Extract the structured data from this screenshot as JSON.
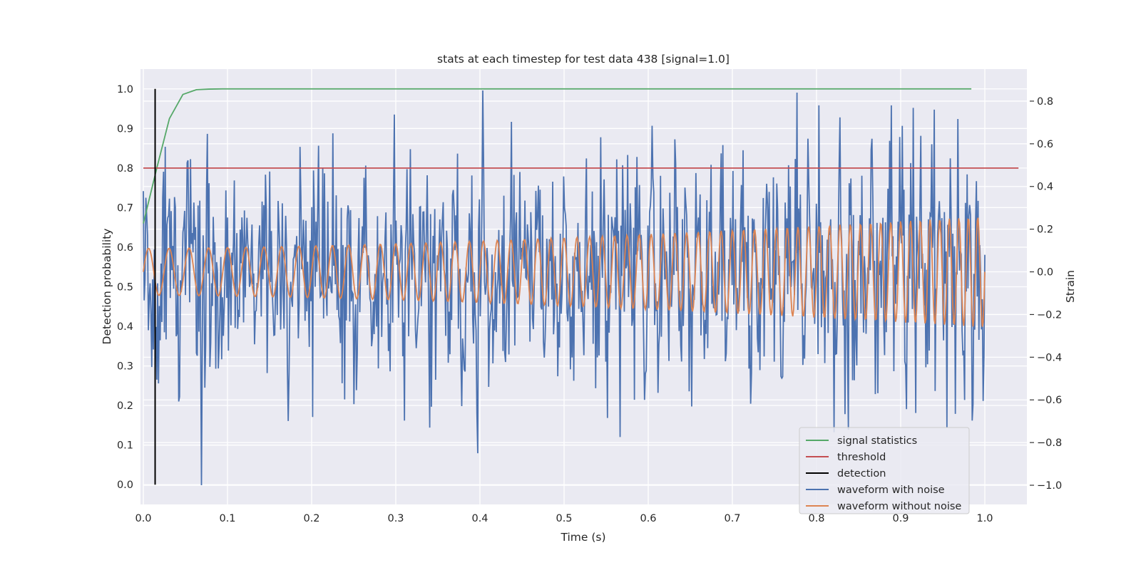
{
  "chart_data": {
    "type": "line",
    "title": "stats at each timestep for test data 438 [signal=1.0]",
    "xlabel": "Time (s)",
    "ylabel": "Detection probability",
    "ylabel_right": "Strain",
    "xlim": [
      0.0,
      1.05
    ],
    "ylim": [
      -0.05,
      1.05
    ],
    "ylim_right": [
      -1.09,
      0.95
    ],
    "xticks": [
      "0.0",
      "0.1",
      "0.2",
      "0.3",
      "0.4",
      "0.5",
      "0.6",
      "0.7",
      "0.8",
      "0.9",
      "1.0"
    ],
    "yticks": [
      "0.0",
      "0.1",
      "0.2",
      "0.3",
      "0.4",
      "0.5",
      "0.6",
      "0.7",
      "0.8",
      "0.9",
      "1.0"
    ],
    "yticks_right": [
      "−1.0",
      "−0.8",
      "−0.6",
      "−0.4",
      "−0.2",
      "0.0",
      "0.2",
      "0.4",
      "0.6",
      "0.8"
    ],
    "grid": true,
    "legend_position": "lower-right",
    "series": [
      {
        "name": "signal statistics",
        "color": "#55a868",
        "axis": "left",
        "x": [
          0.0,
          0.016,
          0.031,
          0.047,
          0.063,
          0.078,
          0.094,
          0.2,
          0.4,
          0.6,
          0.8,
          0.984
        ],
        "y": [
          0.66,
          0.8,
          0.925,
          0.986,
          0.998,
          0.9995,
          1.0,
          1.0,
          1.0,
          1.0,
          1.0,
          1.0
        ]
      },
      {
        "name": "threshold",
        "color": "#c44e52",
        "axis": "left",
        "x": [
          0.0,
          1.04
        ],
        "y": [
          0.8,
          0.8
        ]
      },
      {
        "name": "detection",
        "color": "#000000",
        "axis": "left",
        "x": [
          0.014,
          0.014
        ],
        "y": [
          0.0,
          1.0
        ]
      },
      {
        "name": "waveform with noise",
        "color": "#4c72b0",
        "axis": "right",
        "description": "noisy strain, 1000 samples from 0.0 to 1.0 s, std ~0.25, min -1.0 near t=0.069, max 0.85 near t=0.403"
      },
      {
        "name": "waveform without noise",
        "color": "#dd8452",
        "axis": "right",
        "description": "chirp from ~40 Hz to ~90 Hz with amplitude growing from 0.11 to 0.26"
      }
    ],
    "noise_extremes": [
      {
        "x": 0.069,
        "y": -1.0
      },
      {
        "x": 0.403,
        "y": 0.85
      },
      {
        "x": 0.201,
        "y": -0.68
      },
      {
        "x": 0.34,
        "y": -0.73
      },
      {
        "x": 0.397,
        "y": -0.85
      },
      {
        "x": 0.596,
        "y": -0.6
      },
      {
        "x": 0.777,
        "y": 0.84
      },
      {
        "x": 0.838,
        "y": -0.74
      },
      {
        "x": 0.94,
        "y": 0.76
      },
      {
        "x": 0.955,
        "y": -0.73
      }
    ],
    "chirp": {
      "f0": 40,
      "f1": 90,
      "amp0": 0.11,
      "amp1": 0.26,
      "samples": 1000,
      "noise_std": 0.25,
      "seed": 438
    }
  }
}
